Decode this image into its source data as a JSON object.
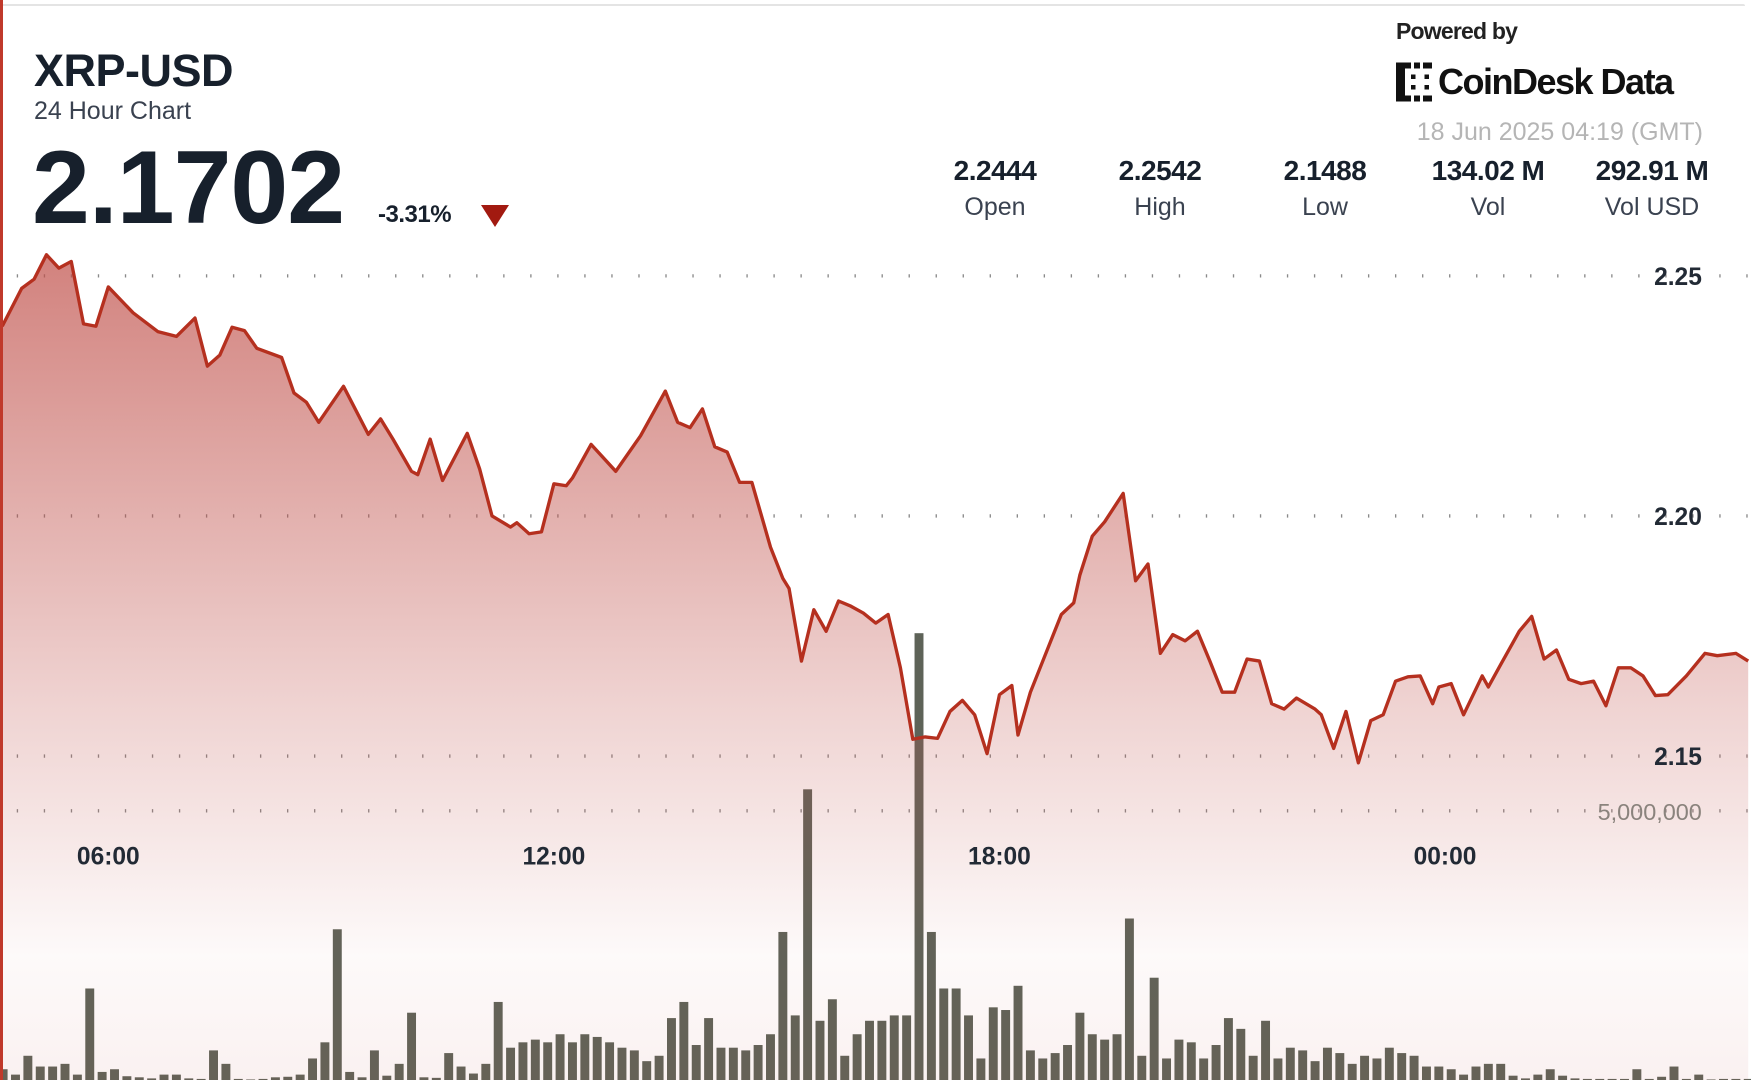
{
  "header": {
    "symbol": "XRP-USD",
    "subtitle": "24 Hour Chart",
    "price": "2.1702",
    "change": "-3.31%",
    "change_direction": "down",
    "powered_by": "Powered by",
    "brand": "CoinDesk Data",
    "timestamp": "18 Jun 2025 04:19 (GMT)"
  },
  "stats": [
    {
      "value": "2.2444",
      "label": "Open"
    },
    {
      "value": "2.2542",
      "label": "High"
    },
    {
      "value": "2.1488",
      "label": "Low"
    },
    {
      "value": "134.02 M",
      "label": "Vol"
    },
    {
      "value": "292.91 M",
      "label": "Vol USD"
    }
  ],
  "colors": {
    "line": "#b5301f",
    "fill": "#c0504a",
    "volume_bar": "#5e6358",
    "accent_left_border": "#c0392b",
    "down": "#a21a10"
  },
  "chart_data": {
    "type": "area",
    "grid": true,
    "price_axis": {
      "ticks": [
        "2.25",
        "2.20",
        "2.15"
      ],
      "tick_values": [
        2.25,
        2.2,
        2.15
      ],
      "position": "right"
    },
    "time_axis": {
      "ticks": [
        "06:00",
        "12:00",
        "18:00",
        "00:00"
      ],
      "range": [
        "04:30",
        "04:10"
      ]
    },
    "volume_axis": {
      "ticks": [
        "5,000,000"
      ],
      "tick_values": [
        5000000
      ]
    },
    "price_series": [
      [
        "04:30",
        2.2395
      ],
      [
        "04:50",
        2.2474
      ],
      [
        "05:00",
        2.2493
      ],
      [
        "05:10",
        2.2544
      ],
      [
        "05:20",
        2.2516
      ],
      [
        "05:30",
        2.253
      ],
      [
        "05:40",
        2.24
      ],
      [
        "05:50",
        2.2395
      ],
      [
        "06:00",
        2.2477
      ],
      [
        "06:20",
        2.2423
      ],
      [
        "06:40",
        2.2384
      ],
      [
        "06:55",
        2.2374
      ],
      [
        "07:10",
        2.2412
      ],
      [
        "07:20",
        2.2312
      ],
      [
        "07:30",
        2.2335
      ],
      [
        "07:40",
        2.2393
      ],
      [
        "07:50",
        2.2386
      ],
      [
        "08:00",
        2.2349
      ],
      [
        "08:20",
        2.233
      ],
      [
        "08:30",
        2.2256
      ],
      [
        "08:40",
        2.2237
      ],
      [
        "08:50",
        2.2195
      ],
      [
        "09:10",
        2.227
      ],
      [
        "09:30",
        2.217
      ],
      [
        "09:40",
        2.2202
      ],
      [
        "09:50",
        2.216
      ],
      [
        "10:05",
        2.2093
      ],
      [
        "10:10",
        2.2086
      ],
      [
        "10:20",
        2.216
      ],
      [
        "10:30",
        2.2074
      ],
      [
        "10:50",
        2.2172
      ],
      [
        "11:00",
        2.2098
      ],
      [
        "11:10",
        2.2
      ],
      [
        "11:25",
        2.1977
      ],
      [
        "11:30",
        2.1986
      ],
      [
        "11:40",
        2.1963
      ],
      [
        "11:50",
        2.1967
      ],
      [
        "12:00",
        2.2067
      ],
      [
        "12:10",
        2.2063
      ],
      [
        "12:15",
        2.2079
      ],
      [
        "12:30",
        2.2149
      ],
      [
        "12:50",
        2.2093
      ],
      [
        "13:10",
        2.2167
      ],
      [
        "13:30",
        2.226
      ],
      [
        "13:40",
        2.2195
      ],
      [
        "13:50",
        2.2184
      ],
      [
        "14:00",
        2.2223
      ],
      [
        "14:10",
        2.2144
      ],
      [
        "14:20",
        2.2133
      ],
      [
        "14:30",
        2.207
      ],
      [
        "14:40",
        2.207
      ],
      [
        "14:55",
        2.1935
      ],
      [
        "15:05",
        2.187
      ],
      [
        "15:10",
        2.1849
      ],
      [
        "15:20",
        2.1698
      ],
      [
        "15:30",
        2.1805
      ],
      [
        "15:40",
        2.176
      ],
      [
        "15:50",
        2.1823
      ],
      [
        "16:00",
        2.1812
      ],
      [
        "16:10",
        2.1798
      ],
      [
        "16:20",
        2.1777
      ],
      [
        "16:30",
        2.1795
      ],
      [
        "16:40",
        2.1684
      ],
      [
        "16:50",
        2.1535
      ],
      [
        "17:00",
        2.154
      ],
      [
        "17:10",
        2.1537
      ],
      [
        "17:20",
        2.1593
      ],
      [
        "17:30",
        2.1616
      ],
      [
        "17:40",
        2.1586
      ],
      [
        "17:50",
        2.1505
      ],
      [
        "18:00",
        2.1628
      ],
      [
        "18:10",
        2.1647
      ],
      [
        "18:15",
        2.1544
      ],
      [
        "18:25",
        2.1633
      ],
      [
        "18:35",
        2.1698
      ],
      [
        "18:50",
        2.1795
      ],
      [
        "19:00",
        2.1819
      ],
      [
        "19:05",
        2.1877
      ],
      [
        "19:15",
        2.1958
      ],
      [
        "19:25",
        2.1988
      ],
      [
        "19:40",
        2.2047
      ],
      [
        "19:50",
        2.1865
      ],
      [
        "20:00",
        2.19
      ],
      [
        "20:10",
        2.1714
      ],
      [
        "20:20",
        2.1753
      ],
      [
        "20:30",
        2.174
      ],
      [
        "20:40",
        2.176
      ],
      [
        "20:50",
        2.1698
      ],
      [
        "21:00",
        2.1633
      ],
      [
        "21:10",
        2.1633
      ],
      [
        "21:20",
        2.1702
      ],
      [
        "21:30",
        2.1698
      ],
      [
        "21:40",
        2.1609
      ],
      [
        "21:50",
        2.1598
      ],
      [
        "22:00",
        2.1621
      ],
      [
        "22:15",
        2.1598
      ],
      [
        "22:20",
        2.1586
      ],
      [
        "22:30",
        2.1516
      ],
      [
        "22:40",
        2.1593
      ],
      [
        "22:50",
        2.1486
      ],
      [
        "23:00",
        2.1574
      ],
      [
        "23:10",
        2.1586
      ],
      [
        "23:20",
        2.1656
      ],
      [
        "23:30",
        2.1665
      ],
      [
        "23:40",
        2.1667
      ],
      [
        "23:50",
        2.1609
      ],
      [
        "23:55",
        2.1644
      ],
      [
        "00:05",
        2.1651
      ],
      [
        "00:15",
        2.1586
      ],
      [
        "00:30",
        2.1667
      ],
      [
        "00:35",
        2.1644
      ],
      [
        "00:45",
        2.1691
      ],
      [
        "01:00",
        2.176
      ],
      [
        "01:10",
        2.1791
      ],
      [
        "01:20",
        2.1702
      ],
      [
        "01:30",
        2.1721
      ],
      [
        "01:40",
        2.166
      ],
      [
        "01:50",
        2.1651
      ],
      [
        "02:00",
        2.1656
      ],
      [
        "02:10",
        2.1605
      ],
      [
        "02:20",
        2.1684
      ],
      [
        "02:30",
        2.1684
      ],
      [
        "02:40",
        2.1667
      ],
      [
        "02:50",
        2.1626
      ],
      [
        "03:00",
        2.1628
      ],
      [
        "03:15",
        2.1667
      ],
      [
        "03:30",
        2.1714
      ],
      [
        "03:40",
        2.1709
      ],
      [
        "03:55",
        2.1714
      ],
      [
        "04:05",
        2.1698
      ]
    ],
    "volume_series": {
      "start": "04:35",
      "interval_minutes": 10,
      "values_millions": [
        0.2,
        0.1,
        0.45,
        0.25,
        0.25,
        0.3,
        0.1,
        1.7,
        0.15,
        0.2,
        0.07,
        0.05,
        0.03,
        0.1,
        0.1,
        0.03,
        0.02,
        0.55,
        0.3,
        0.02,
        0.01,
        0.02,
        0.05,
        0.06,
        0.1,
        0.4,
        0.7,
        2.8,
        0.15,
        0.05,
        0.55,
        0.08,
        0.3,
        1.25,
        0.05,
        0.04,
        0.5,
        0.25,
        0.12,
        0.3,
        1.45,
        0.6,
        0.7,
        0.75,
        0.7,
        0.85,
        0.7,
        0.85,
        0.8,
        0.7,
        0.6,
        0.55,
        0.35,
        0.45,
        1.15,
        1.45,
        0.65,
        1.15,
        0.6,
        0.6,
        0.55,
        0.65,
        0.85,
        2.75,
        1.2,
        5.4,
        1.1,
        1.5,
        0.45,
        0.85,
        1.1,
        1.1,
        1.2,
        1.2,
        8.3,
        2.75,
        1.7,
        1.7,
        1.2,
        0.4,
        1.35,
        1.3,
        1.75,
        0.55,
        0.4,
        0.5,
        0.65,
        1.25,
        0.85,
        0.75,
        0.85,
        3.0,
        0.45,
        1.9,
        0.4,
        0.75,
        0.7,
        0.4,
        0.65,
        1.15,
        0.95,
        0.45,
        1.1,
        0.4,
        0.6,
        0.55,
        0.35,
        0.6,
        0.5,
        0.3,
        0.45,
        0.4,
        0.6,
        0.5,
        0.45,
        0.25,
        0.25,
        0.2,
        0.1,
        0.25,
        0.3,
        0.3,
        0.08,
        0.03,
        0.1,
        0.2,
        0.08,
        0.03,
        0.02,
        0.02,
        0.02,
        0.02,
        0.2,
        0.02,
        0.06,
        0.25,
        0.02,
        0.1,
        0.01,
        0.02,
        0.02,
        0.02
      ]
    }
  }
}
